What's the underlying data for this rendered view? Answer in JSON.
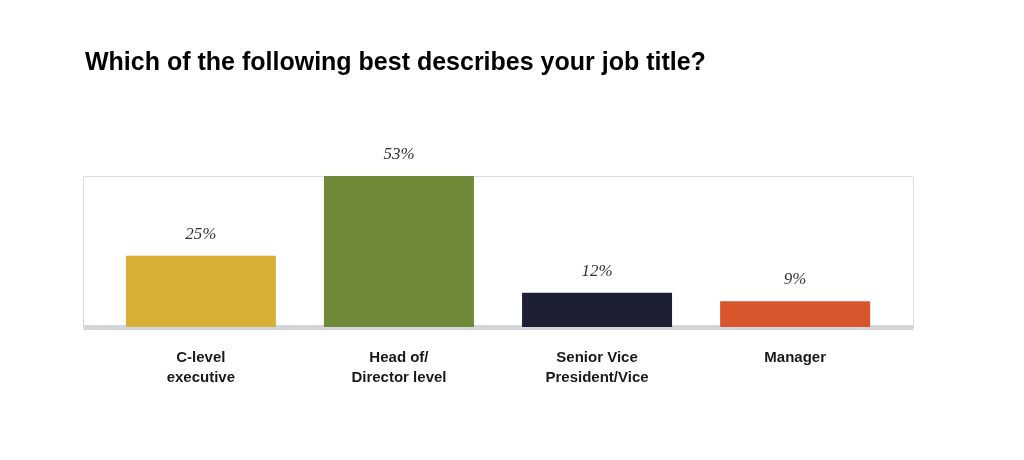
{
  "chart_data": {
    "type": "bar",
    "title": "Which of the following best describes your job title?",
    "categories": [
      "C-level\nexecutive",
      "Head of/\nDirector level",
      "Senior Vice\nPresident/Vice",
      "Manager"
    ],
    "values": [
      25,
      53,
      12,
      9
    ],
    "value_labels": [
      "25%",
      "53%",
      "12%",
      "9%"
    ],
    "colors": [
      "#d8b036",
      "#6f8a38",
      "#1d2035",
      "#d9552b"
    ],
    "grid": false
  }
}
